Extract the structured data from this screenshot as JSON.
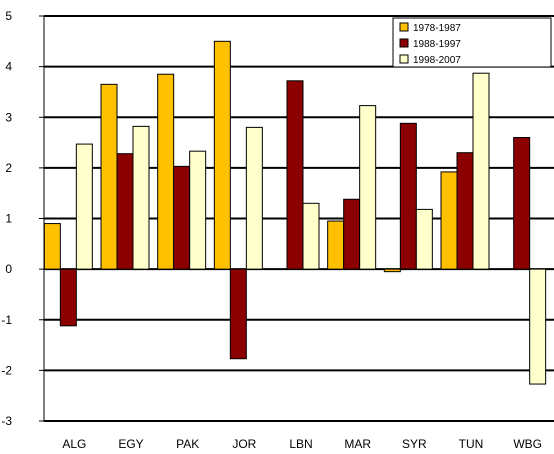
{
  "chart_data": {
    "type": "bar",
    "title": "",
    "xlabel": "",
    "ylabel": "",
    "ylim": [
      -3,
      5
    ],
    "yticks": [
      5,
      4,
      3,
      2,
      1,
      0,
      -1,
      -2,
      -3
    ],
    "grid": true,
    "legend_position": "top-right",
    "categories": [
      "ALG",
      "EGY",
      "PAK",
      "JOR",
      "LBN",
      "MAR",
      "SYR",
      "TUN",
      "WBG"
    ],
    "series": [
      {
        "name": "1978-1987",
        "color": "#FFC000",
        "values": [
          0.9,
          3.65,
          3.85,
          4.5,
          null,
          0.95,
          -0.05,
          1.92,
          null
        ]
      },
      {
        "name": "1988-1997",
        "color": "#8B0000",
        "values": [
          -1.12,
          2.28,
          2.03,
          -1.77,
          3.72,
          1.38,
          2.88,
          2.3,
          2.6
        ]
      },
      {
        "name": "1998-2007",
        "color": "#FFFFCC",
        "values": [
          2.47,
          2.82,
          2.33,
          2.8,
          1.3,
          3.23,
          1.18,
          3.87,
          -2.27
        ]
      }
    ]
  }
}
